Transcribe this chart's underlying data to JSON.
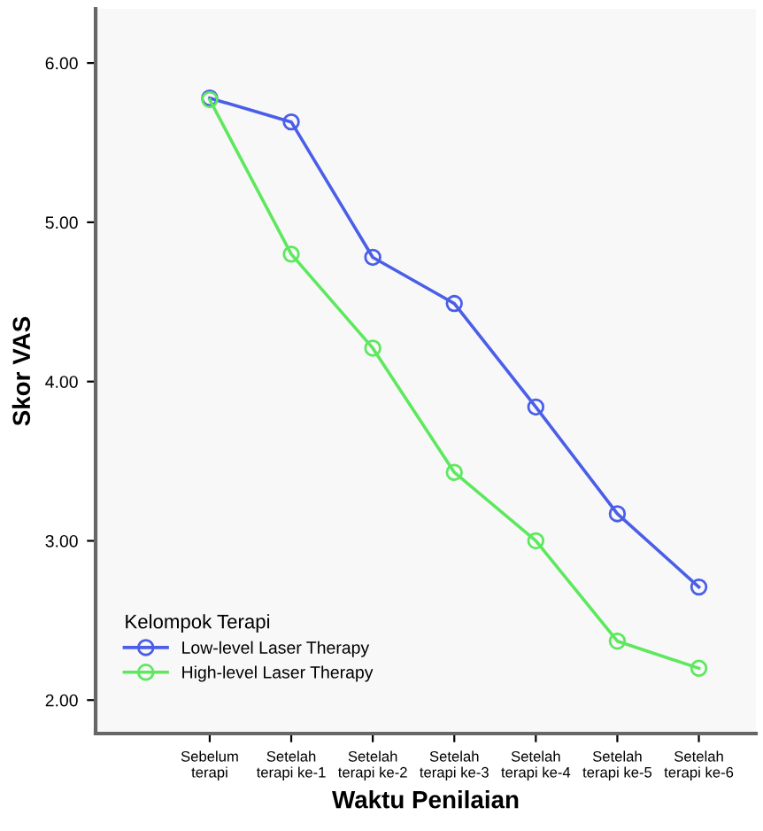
{
  "chart_data": {
    "type": "line",
    "xlabel": "Waktu Penilaian",
    "ylabel": "Skor VAS",
    "legend_title": "Kelompok Terapi",
    "categories": [
      "Sebelum\nterapi",
      "Setelah\nterapi ke-1",
      "Setelah\nterapi ke-2",
      "Setelah\nterapi ke-3",
      "Setelah\nterapi ke-4",
      "Setelah\nterapi ke-5",
      "Setelah\nterapi ke-6"
    ],
    "series": [
      {
        "name": "Low-level Laser Therapy",
        "color": "#4a5ee8",
        "values": [
          5.78,
          5.63,
          4.78,
          4.49,
          3.84,
          3.17,
          2.71
        ]
      },
      {
        "name": "High-level Laser Therapy",
        "color": "#5de85d",
        "values": [
          5.77,
          4.8,
          4.21,
          3.43,
          3.0,
          2.37,
          2.2
        ]
      }
    ],
    "ylim": [
      1.79,
      6.34
    ],
    "yticks": [
      {
        "value": 2,
        "label": "2.00"
      },
      {
        "value": 3,
        "label": "3.00"
      },
      {
        "value": 4,
        "label": "4.00"
      },
      {
        "value": 5,
        "label": "5.00"
      },
      {
        "value": 6,
        "label": "6.00"
      }
    ],
    "grid": false,
    "legend": "bottom left",
    "marker": "circle",
    "line_style": "solid"
  }
}
